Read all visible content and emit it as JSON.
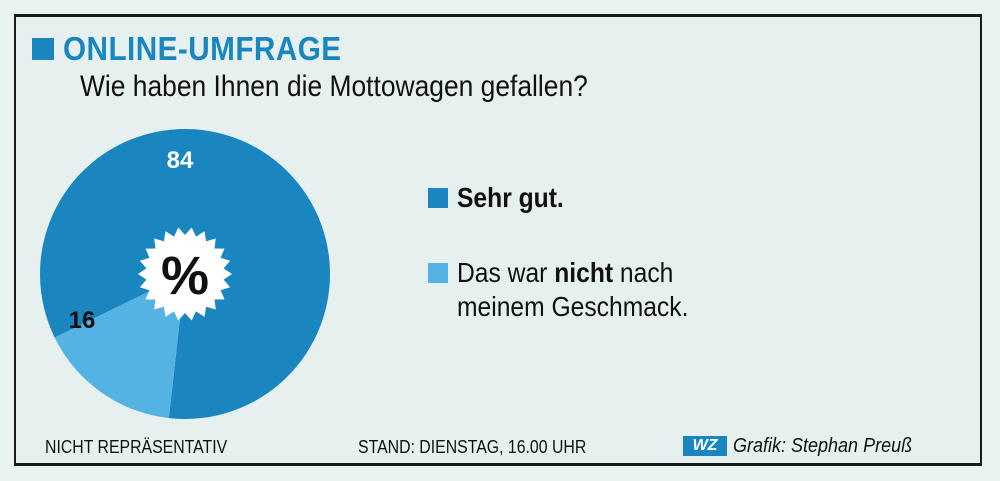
{
  "header": {
    "title": "ONLINE-UMFRAGE",
    "question": "Wie haben Ihnen die Mottowagen gefallen?"
  },
  "chart_data": {
    "type": "pie",
    "unit_symbol": "%",
    "slices": [
      {
        "label": "Sehr gut.",
        "value": 84,
        "color": "#1a86bf"
      },
      {
        "label": "Das war nicht nach meinem Geschmack.",
        "value": 16,
        "color": "#55b3e3"
      }
    ]
  },
  "legend": {
    "item1": {
      "text": "Sehr gut."
    },
    "item2": {
      "pre": "Das war ",
      "bold": "nicht",
      "post": " nach",
      "line2": "meinem Geschmack."
    }
  },
  "footer": {
    "left": "NICHT REPRÄSENTATIV",
    "center": "STAND: DIENSTAG, 16.00 UHR",
    "logo": "WZ",
    "credit": "Grafik: Stephan Preuß"
  },
  "colors": {
    "accent": "#1a86bf",
    "light": "#55b3e3",
    "background": "#e6f1ef"
  }
}
